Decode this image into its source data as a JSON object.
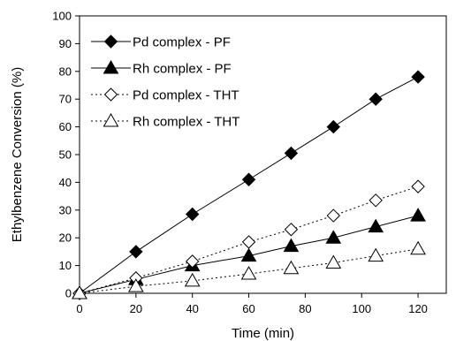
{
  "chart_data": {
    "type": "line",
    "title": "",
    "xlabel": "Time (min)",
    "ylabel": "Ethylbenzene Conversion (%)",
    "xlim": [
      0,
      130
    ],
    "ylim": [
      0,
      100
    ],
    "xticks": [
      0,
      20,
      40,
      60,
      80,
      100,
      120
    ],
    "yticks": [
      0,
      10,
      20,
      30,
      40,
      50,
      60,
      70,
      80,
      90,
      100
    ],
    "grid": false,
    "legend_position": "top-left",
    "series": [
      {
        "name": "Pd complex - PF",
        "marker": "filled-diamond",
        "line": "solid",
        "x": [
          0,
          20,
          40,
          60,
          75,
          90,
          105,
          120
        ],
        "y": [
          0,
          15,
          28.5,
          41,
          50.5,
          60,
          70,
          78
        ]
      },
      {
        "name": "Rh complex - PF",
        "marker": "filled-triangle",
        "line": "solid",
        "x": [
          0,
          20,
          40,
          60,
          75,
          90,
          105,
          120
        ],
        "y": [
          0,
          5,
          10,
          13.5,
          17,
          20,
          24,
          28
        ]
      },
      {
        "name": "Pd complex - THT",
        "marker": "open-diamond",
        "line": "dotted",
        "x": [
          0,
          20,
          40,
          60,
          75,
          90,
          105,
          120
        ],
        "y": [
          0,
          5.5,
          11.5,
          18.5,
          23,
          28,
          33.5,
          38.5
        ]
      },
      {
        "name": "Rh complex - THT",
        "marker": "open-triangle",
        "line": "dotted",
        "x": [
          0,
          20,
          40,
          60,
          75,
          90,
          105,
          120
        ],
        "y": [
          0,
          2.5,
          4.5,
          7,
          9,
          11,
          13.5,
          16
        ]
      }
    ]
  }
}
